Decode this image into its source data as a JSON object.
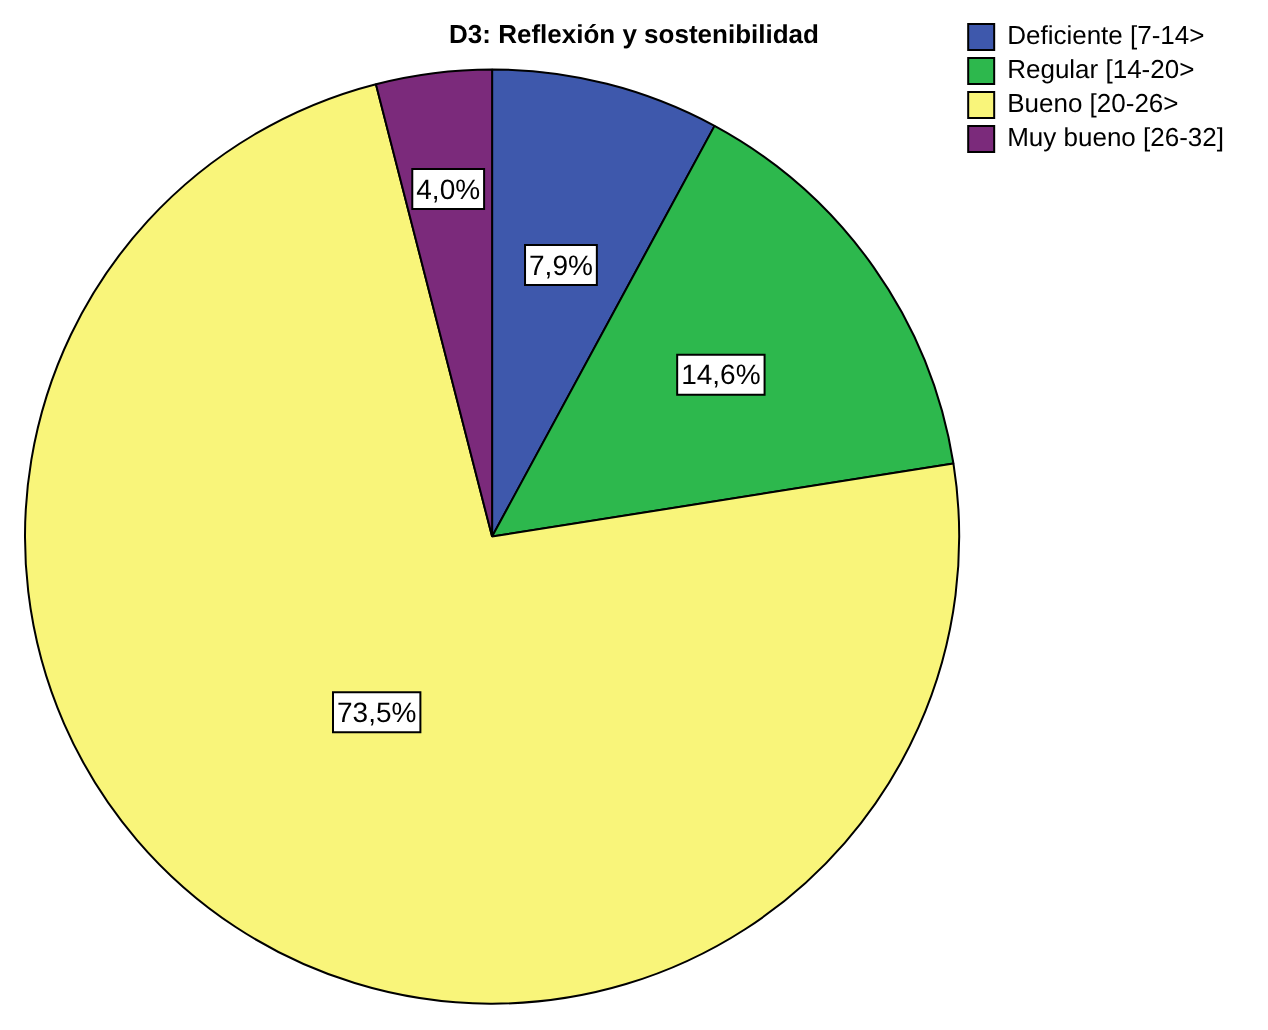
{
  "chart_data": {
    "type": "pie",
    "title": "D3: Reflexión y sostenibilidad",
    "categories": [
      "Deficiente [7-14>",
      "Regular [14-20>",
      "Bueno [20-26>",
      "Muy bueno [26-32]"
    ],
    "values": [
      7.9,
      14.6,
      73.5,
      4.0
    ],
    "colors": [
      "#3e58ac",
      "#2db84d",
      "#f9f57a",
      "#7b2a7b"
    ],
    "value_labels": [
      "7,9%",
      "14,6%",
      "73,5%",
      "4,0%"
    ],
    "legend": "top right"
  }
}
